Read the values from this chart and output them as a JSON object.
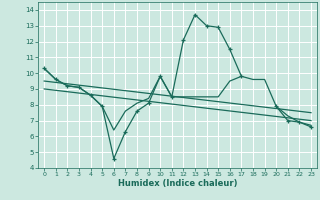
{
  "xlabel": "Humidex (Indice chaleur)",
  "background_color": "#cce8e0",
  "grid_color": "#ffffff",
  "line_color": "#1a6b5a",
  "xlim": [
    -0.5,
    23.5
  ],
  "ylim": [
    4,
    14.5
  ],
  "yticks": [
    4,
    5,
    6,
    7,
    8,
    9,
    10,
    11,
    12,
    13,
    14
  ],
  "xticks": [
    0,
    1,
    2,
    3,
    4,
    5,
    6,
    7,
    8,
    9,
    10,
    11,
    12,
    13,
    14,
    15,
    16,
    17,
    18,
    19,
    20,
    21,
    22,
    23
  ],
  "series": [
    {
      "x": [
        0,
        1,
        2,
        3,
        4,
        5,
        6,
        7,
        8,
        9,
        10,
        11,
        12,
        13,
        14,
        15,
        16,
        17,
        18,
        19,
        20,
        21,
        22,
        23
      ],
      "y": [
        10.3,
        9.6,
        9.2,
        9.1,
        8.6,
        7.9,
        6.4,
        7.6,
        8.1,
        8.4,
        9.8,
        8.5,
        8.5,
        8.5,
        8.5,
        8.5,
        9.5,
        9.8,
        9.6,
        9.6,
        7.9,
        7.3,
        6.9,
        6.7
      ],
      "has_markers": false
    },
    {
      "x": [
        0,
        1,
        2,
        3,
        4,
        5,
        6,
        7,
        8,
        9,
        10,
        11,
        12,
        13,
        14,
        15,
        16,
        17,
        18,
        19,
        20,
        21,
        22,
        23
      ],
      "y": [
        10.3,
        9.6,
        9.2,
        9.1,
        8.6,
        7.9,
        4.6,
        6.3,
        7.6,
        8.1,
        9.8,
        8.5,
        12.1,
        13.7,
        13.0,
        12.9,
        11.5,
        9.8,
        null,
        null,
        7.9,
        7.0,
        6.9,
        6.6
      ],
      "has_markers": true
    },
    {
      "x": [
        0,
        23
      ],
      "y": [
        9.5,
        7.5
      ],
      "has_markers": false
    },
    {
      "x": [
        0,
        23
      ],
      "y": [
        9.0,
        7.0
      ],
      "has_markers": false
    }
  ]
}
